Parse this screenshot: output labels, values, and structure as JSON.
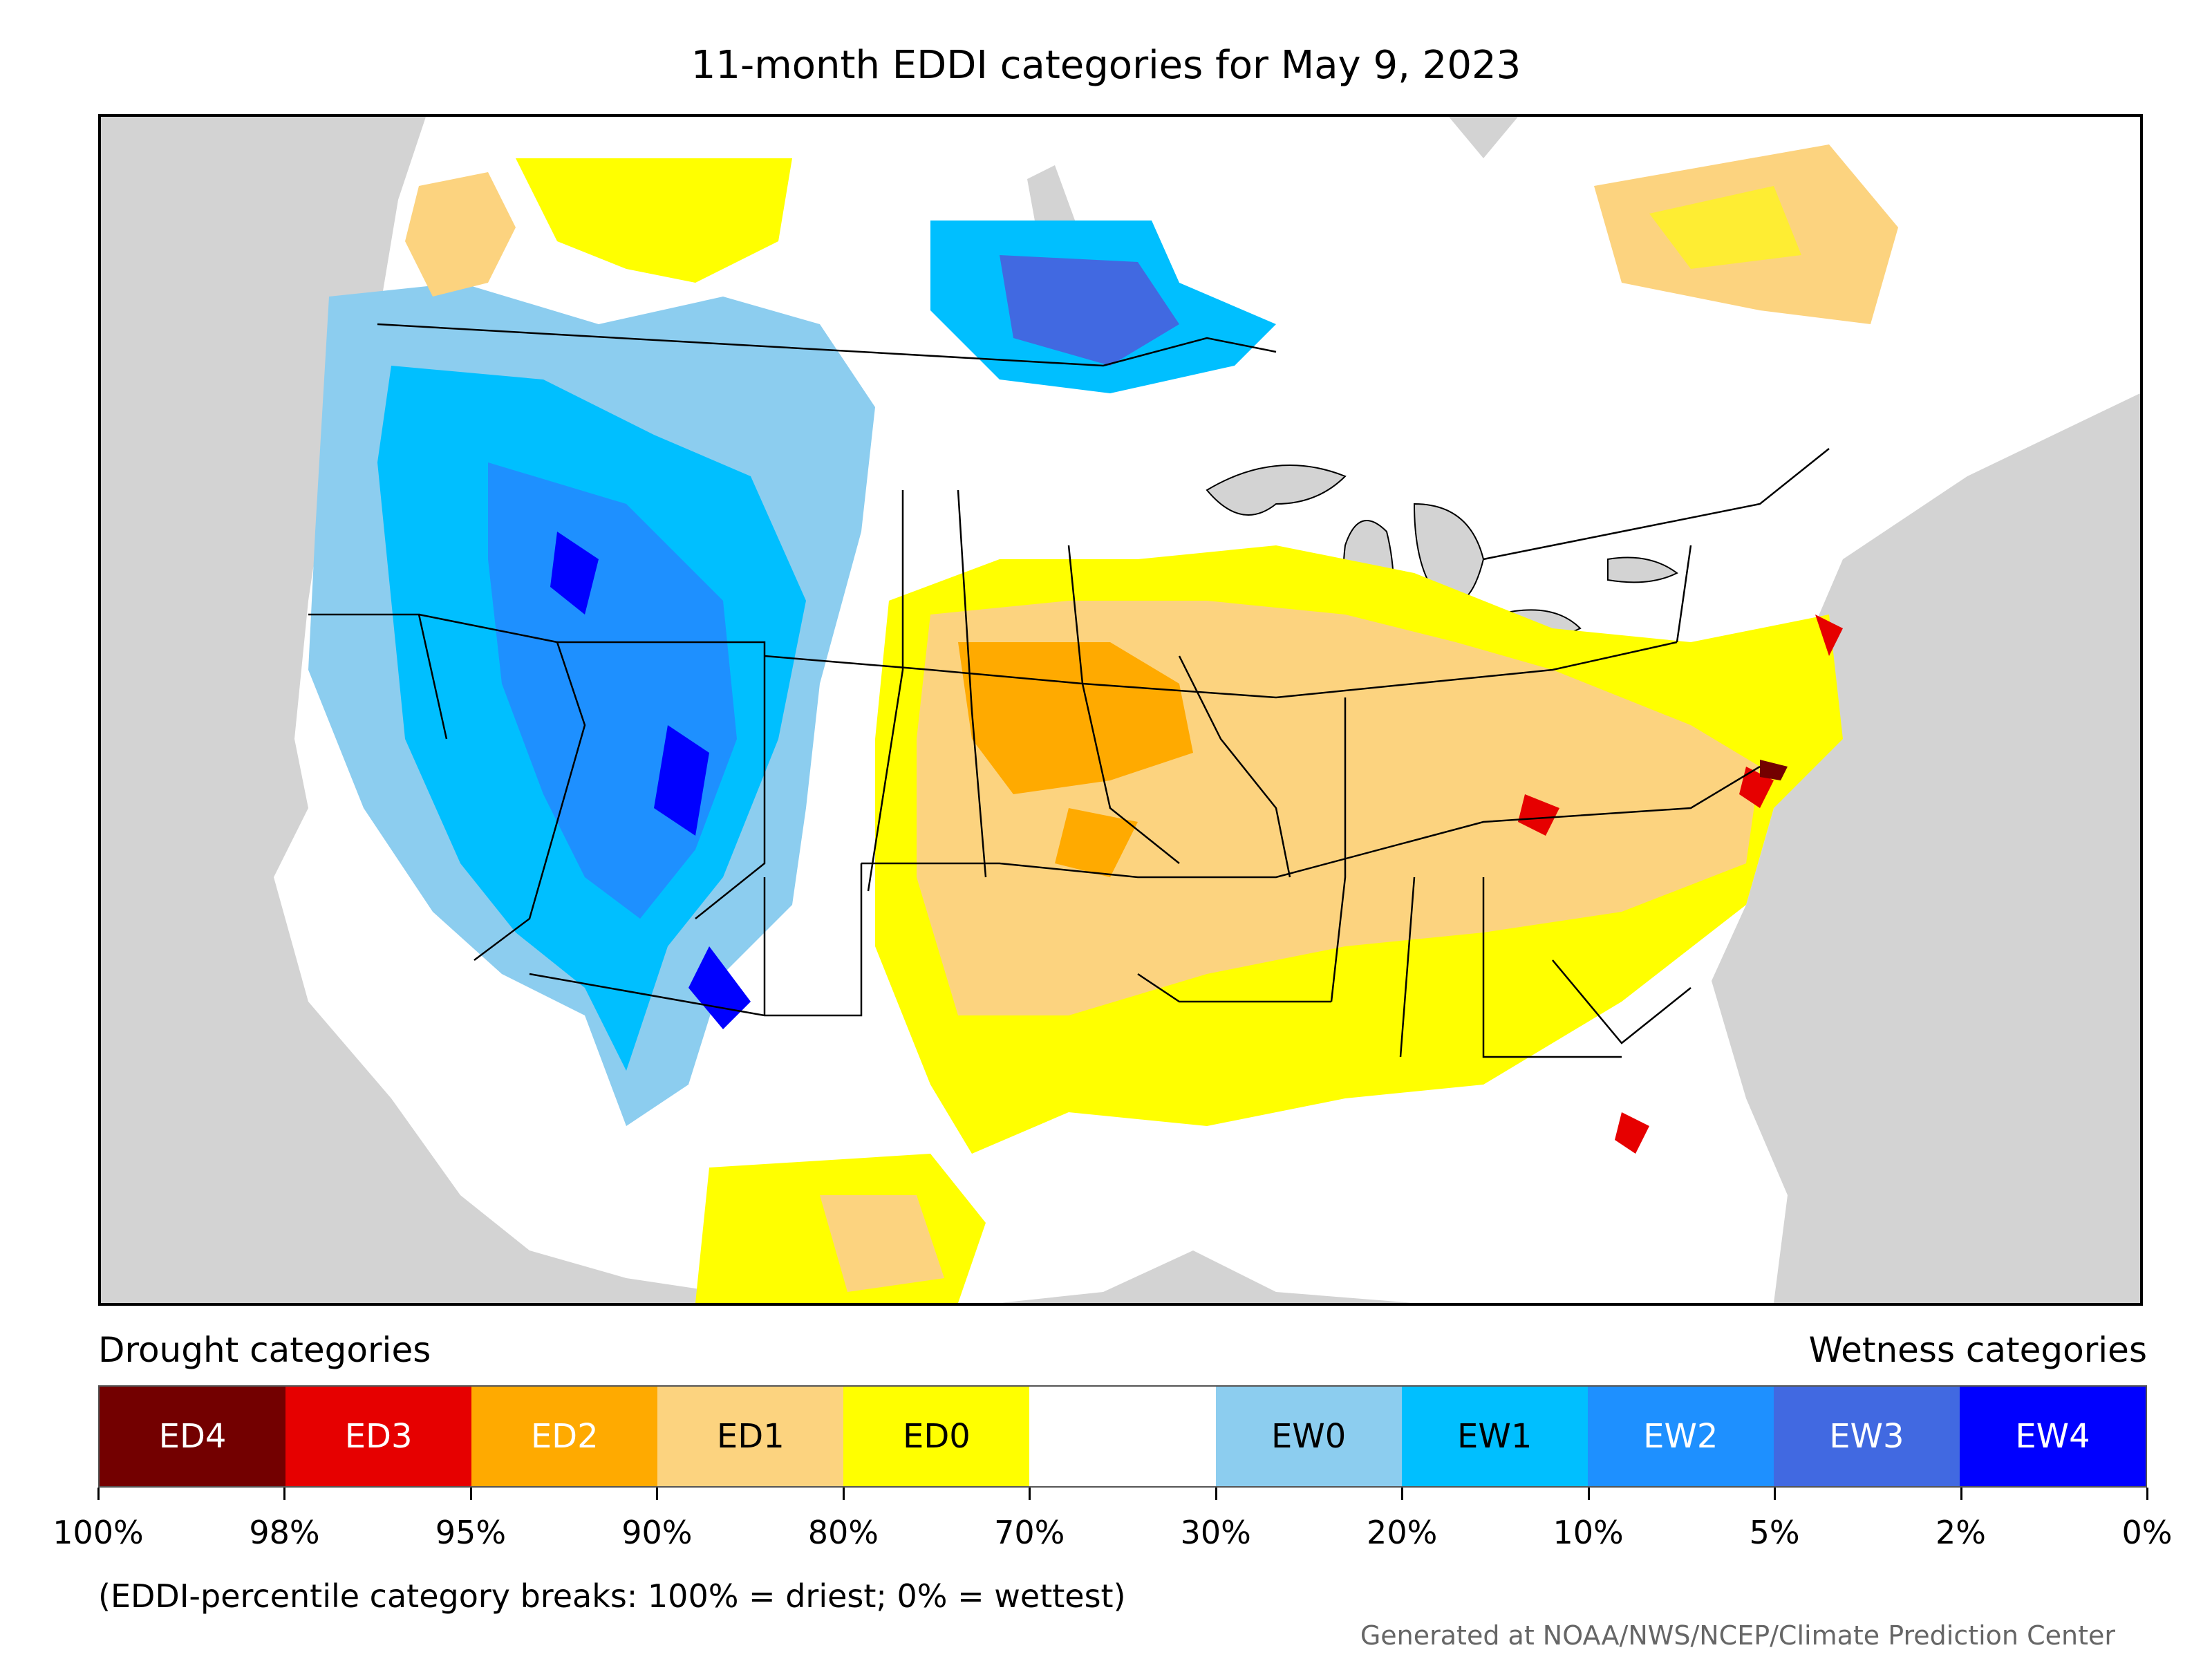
{
  "title": "11-month EDDI categories for May 9, 2023",
  "map": {
    "region": "Contiguous United States with surrounding Canada and Mexico"
  },
  "legend": {
    "drought_title": "Drought categories",
    "wetness_title": "Wetness categories",
    "categories": [
      {
        "label": "ED4",
        "color": "#730000",
        "text_color": "#ffffff"
      },
      {
        "label": "ED3",
        "color": "#e60000",
        "text_color": "#ffffff"
      },
      {
        "label": "ED2",
        "color": "#ffaa00",
        "text_color": "#ffffff"
      },
      {
        "label": "ED1",
        "color": "#fcd37f",
        "text_color": "#000000"
      },
      {
        "label": "ED0",
        "color": "#ffff00",
        "text_color": "#000000"
      },
      {
        "label": "",
        "color": "#ffffff",
        "text_color": "#000000"
      },
      {
        "label": "EW0",
        "color": "#8ccdef",
        "text_color": "#000000"
      },
      {
        "label": "EW1",
        "color": "#00bfff",
        "text_color": "#000000"
      },
      {
        "label": "EW2",
        "color": "#1e90ff",
        "text_color": "#ffffff"
      },
      {
        "label": "EW3",
        "color": "#4169e1",
        "text_color": "#ffffff"
      },
      {
        "label": "EW4",
        "color": "#0000ff",
        "text_color": "#ffffff"
      }
    ],
    "breaks": [
      "100%",
      "98%",
      "95%",
      "90%",
      "80%",
      "70%",
      "30%",
      "20%",
      "10%",
      "5%",
      "2%",
      "0%"
    ]
  },
  "note": "(EDDI-percentile category breaks: 100% = driest; 0% = wettest)",
  "credit": "Generated at NOAA/NWS/NCEP/Climate Prediction Center"
}
